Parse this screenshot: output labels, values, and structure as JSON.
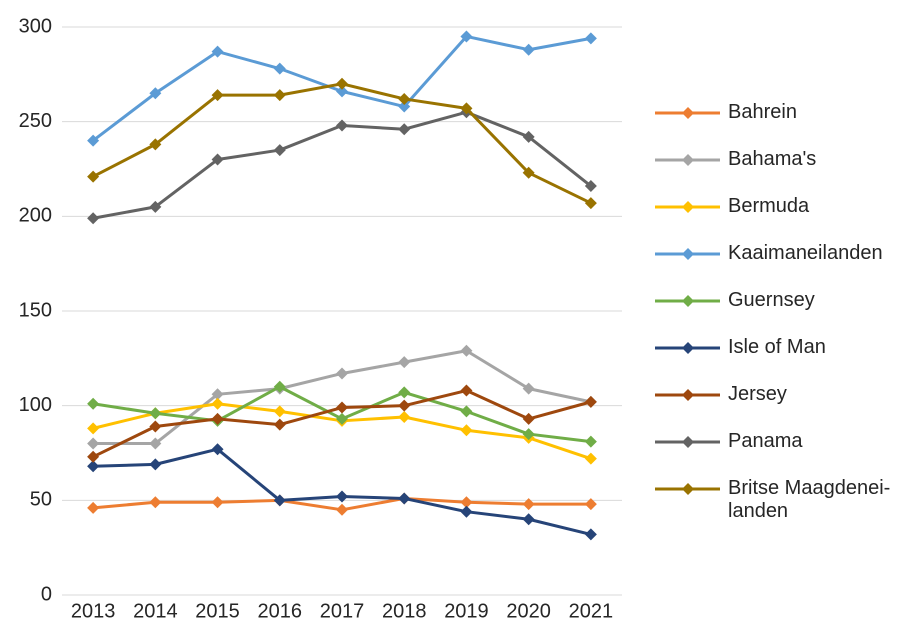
{
  "chart_data": {
    "type": "line",
    "categories": [
      "2013",
      "2014",
      "2015",
      "2016",
      "2017",
      "2018",
      "2019",
      "2020",
      "2021"
    ],
    "ylim": [
      0,
      300
    ],
    "yticks": [
      0,
      50,
      100,
      150,
      200,
      250,
      300
    ],
    "grid": true,
    "legend": "right",
    "series": [
      {
        "name": "Bahrein",
        "color": "#ED7D31",
        "values": [
          46,
          49,
          49,
          50,
          45,
          51,
          49,
          48,
          48
        ]
      },
      {
        "name": "Bahama's",
        "color": "#A5A5A5",
        "values": [
          80,
          80,
          106,
          109,
          117,
          123,
          129,
          109,
          102
        ]
      },
      {
        "name": "Bermuda",
        "color": "#FFC000",
        "values": [
          88,
          96,
          101,
          97,
          92,
          94,
          87,
          83,
          72
        ]
      },
      {
        "name": "Kaaimaneilanden",
        "color": "#5B9BD5",
        "values": [
          240,
          265,
          287,
          278,
          266,
          258,
          295,
          288,
          294
        ]
      },
      {
        "name": "Guernsey",
        "color": "#70AD47",
        "values": [
          101,
          96,
          92,
          110,
          93,
          107,
          97,
          85,
          81
        ]
      },
      {
        "name": "Isle of Man",
        "color": "#264478",
        "values": [
          68,
          69,
          77,
          50,
          52,
          51,
          44,
          40,
          32
        ]
      },
      {
        "name": "Jersey",
        "color": "#9E480E",
        "values": [
          73,
          89,
          93,
          90,
          99,
          100,
          108,
          93,
          102
        ]
      },
      {
        "name": "Panama",
        "color": "#636363",
        "values": [
          199,
          205,
          230,
          235,
          248,
          246,
          255,
          242,
          216
        ]
      },
      {
        "name": "Britse Maagdenei-landen",
        "color": "#997300",
        "values": [
          221,
          238,
          264,
          264,
          270,
          262,
          257,
          223,
          207
        ]
      }
    ]
  }
}
